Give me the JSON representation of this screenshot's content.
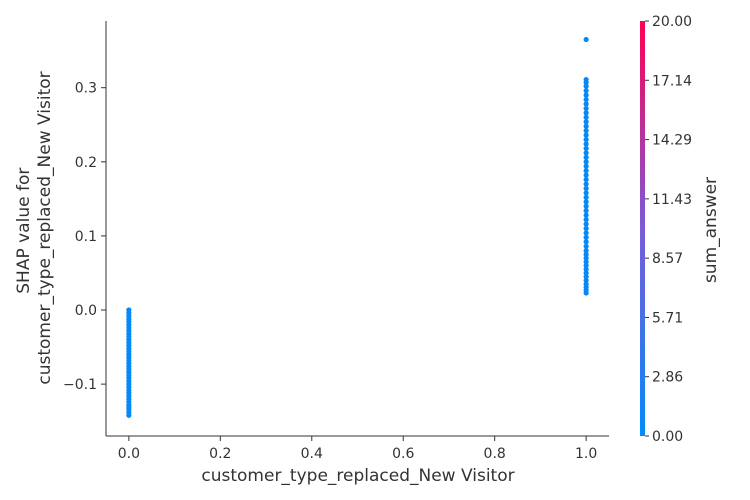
{
  "chart_data": {
    "type": "scatter",
    "title": "",
    "xlabel": "customer_type_replaced_New Visitor",
    "ylabel_lines": [
      "SHAP value for",
      "customer_type_replaced_New Visitor"
    ],
    "xlim": [
      -0.05,
      1.05
    ],
    "ylim": [
      -0.17,
      0.39
    ],
    "x_ticks": [
      {
        "value": 0.0,
        "label": "0.0"
      },
      {
        "value": 0.2,
        "label": "0.2"
      },
      {
        "value": 0.4,
        "label": "0.4"
      },
      {
        "value": 0.6,
        "label": "0.6"
      },
      {
        "value": 0.8,
        "label": "0.8"
      },
      {
        "value": 1.0,
        "label": "1.0"
      }
    ],
    "y_ticks": [
      {
        "value": -0.1,
        "label": "−0.1"
      },
      {
        "value": 0.0,
        "label": "0.0"
      },
      {
        "value": 0.1,
        "label": "0.1"
      },
      {
        "value": 0.2,
        "label": "0.2"
      },
      {
        "value": 0.3,
        "label": "0.3"
      }
    ],
    "series": [
      {
        "x": 0,
        "y_values": [
          -0.142,
          -0.138,
          -0.134,
          -0.131,
          -0.128,
          -0.124,
          -0.12,
          -0.116,
          -0.112,
          -0.108,
          -0.104,
          -0.1,
          -0.096,
          -0.092,
          -0.088,
          -0.084,
          -0.08,
          -0.076,
          -0.072,
          -0.068,
          -0.064,
          -0.06,
          -0.056,
          -0.052,
          -0.048,
          -0.044,
          -0.04,
          -0.036,
          -0.032,
          -0.028,
          -0.024,
          -0.02,
          -0.016,
          -0.012,
          -0.008,
          -0.004,
          0.0
        ],
        "color_value": 0.5
      },
      {
        "x": 1,
        "y_values": [
          0.023,
          0.027,
          0.031,
          0.035,
          0.04,
          0.045,
          0.05,
          0.055,
          0.06,
          0.065,
          0.07,
          0.075,
          0.08,
          0.086,
          0.092,
          0.098,
          0.104,
          0.11,
          0.116,
          0.122,
          0.128,
          0.134,
          0.14,
          0.146,
          0.152,
          0.158,
          0.164,
          0.17,
          0.176,
          0.182,
          0.188,
          0.194,
          0.2,
          0.206,
          0.212,
          0.218,
          0.224,
          0.23,
          0.236,
          0.242,
          0.248,
          0.254,
          0.26,
          0.266,
          0.272,
          0.278,
          0.284,
          0.29,
          0.296,
          0.302,
          0.307,
          0.311,
          0.365
        ],
        "color_value": 0.5
      }
    ],
    "colorbar": {
      "label": "sum_answer",
      "range": [
        0,
        20
      ],
      "tick_labels": [
        "20.00",
        "17.14",
        "14.29",
        "11.43",
        "8.57",
        "5.71",
        "2.86",
        "0.00"
      ],
      "color_low": "#008bfb",
      "color_high": "#ff0052"
    },
    "grid": false,
    "legend": "none"
  }
}
